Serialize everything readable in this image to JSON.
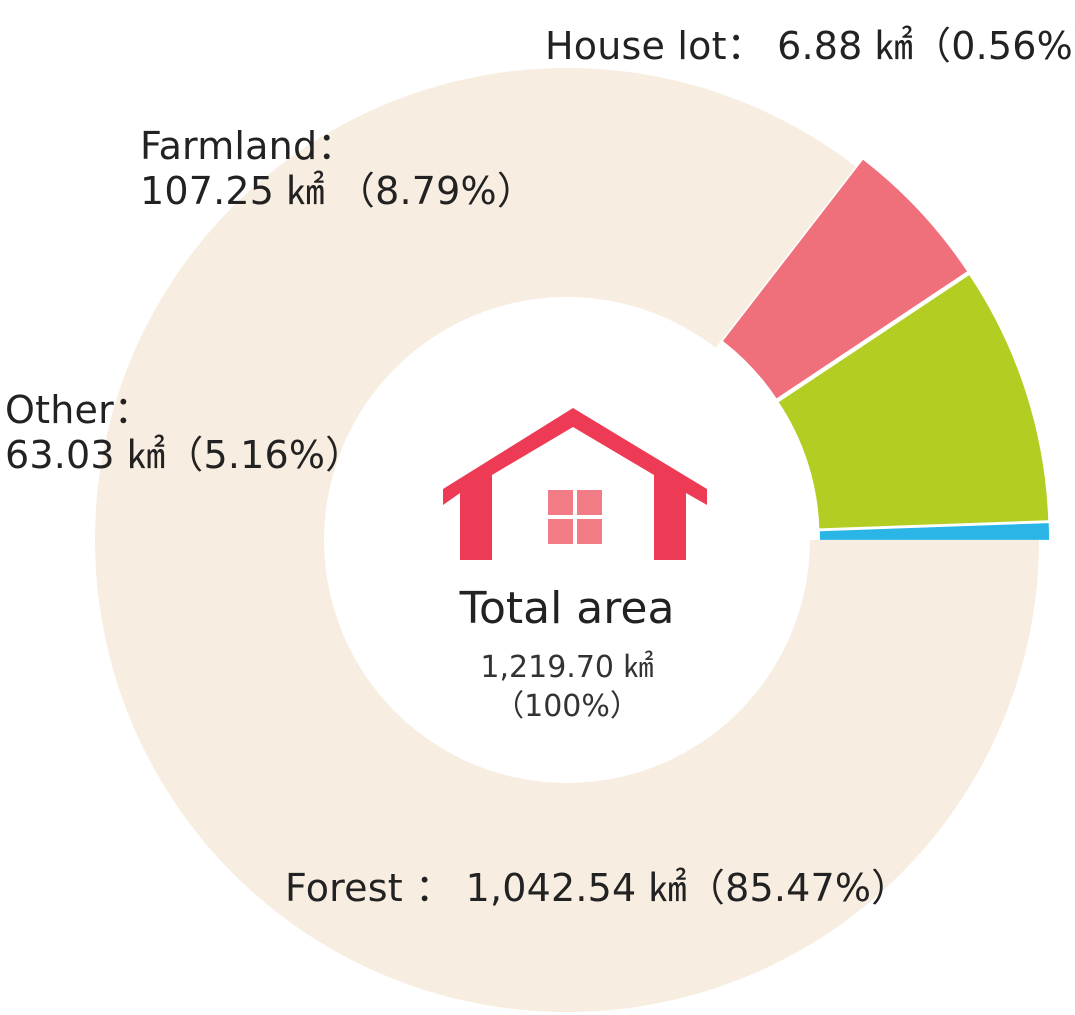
{
  "chart_data": {
    "type": "pie",
    "unit": "㎢",
    "categories": [
      "Forest",
      "Other",
      "Farmland",
      "House lot"
    ],
    "values": [
      1042.54,
      63.03,
      107.25,
      6.88
    ],
    "percents": [
      85.47,
      5.16,
      8.79,
      0.56
    ],
    "colors": [
      "#f7ede0",
      "#ef6f7b",
      "#b4cd23",
      "#2bb5e6"
    ],
    "labels": {
      "forest": "Forest ： 1,042.54 ㎢（85.47%）",
      "other_line1": "Other：",
      "other_line2": "63.03 ㎢（5.16%）",
      "farmland_line1": "Farmland：",
      "farmland_line2": "107.25 ㎢ （8.79%）",
      "house_lot": "House lot： 6.88 ㎢（0.56%）"
    },
    "center": {
      "title": "Total area",
      "value": "1,219.70 ㎢",
      "percent": "（100%）"
    },
    "icon": "house-icon",
    "icon_colors": {
      "roof": "#ee3b55",
      "window": "#f17c85"
    }
  }
}
